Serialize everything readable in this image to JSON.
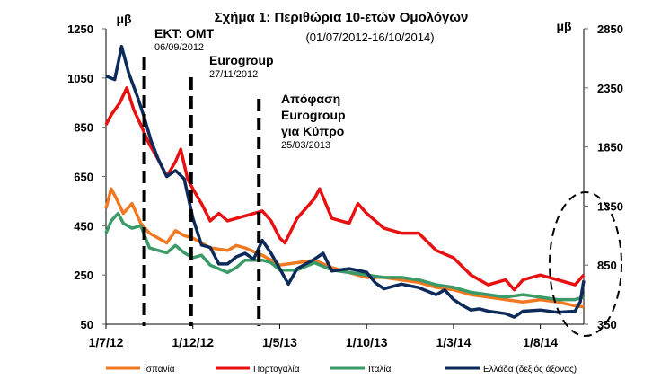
{
  "chart_data": {
    "type": "line",
    "title": "Σχήμα 1: Περιθώρια 10-ετών Ομολόγων",
    "subtitle": "(01/07/2012-16/10/2014)",
    "ylabel_left": "μβ",
    "ylabel_right": "μβ",
    "ylim_left": [
      50,
      1250
    ],
    "ylim_right": [
      350,
      2850
    ],
    "yticks_left": [
      "1250",
      "1050",
      "850",
      "650",
      "450",
      "250",
      "50"
    ],
    "yticks_right": [
      "2850",
      "2350",
      "1850",
      "1350",
      "850",
      "350"
    ],
    "x_unit": "months since 1/7/12",
    "xlim": [
      0,
      27.5
    ],
    "xticks": [
      {
        "m": 0,
        "label": "1/7/12"
      },
      {
        "m": 5,
        "label": "1/12/12"
      },
      {
        "m": 10,
        "label": "1/5/13"
      },
      {
        "m": 15,
        "label": "1/10/13"
      },
      {
        "m": 20,
        "label": "1/3/14"
      },
      {
        "m": 25,
        "label": "1/8/14"
      }
    ],
    "grid": false,
    "legend_position": "bottom",
    "annotations": [
      {
        "m": 2.2,
        "title": [
          "ΕΚΤ: ΟΜΤ"
        ],
        "date": "06/09/2012"
      },
      {
        "m": 4.9,
        "title": [
          "Eurogroup"
        ],
        "date": "27/11/2012"
      },
      {
        "m": 8.8,
        "title": [
          "Απόφαση",
          "Eurogroup",
          "για Κύπρο"
        ],
        "date": "25/03/2013"
      }
    ],
    "series": [
      {
        "name": "Ισπανία",
        "axis": "left",
        "color": "#f07820",
        "points": [
          [
            0,
            520
          ],
          [
            0.3,
            600
          ],
          [
            0.6,
            560
          ],
          [
            1,
            500
          ],
          [
            1.5,
            540
          ],
          [
            2,
            460
          ],
          [
            2.5,
            420
          ],
          [
            3,
            400
          ],
          [
            3.5,
            380
          ],
          [
            4,
            430
          ],
          [
            4.5,
            410
          ],
          [
            5,
            400
          ],
          [
            5.5,
            380
          ],
          [
            6,
            360
          ],
          [
            7,
            350
          ],
          [
            7.5,
            370
          ],
          [
            8,
            360
          ],
          [
            9,
            330
          ],
          [
            9.5,
            310
          ],
          [
            10,
            290
          ],
          [
            11,
            300
          ],
          [
            12,
            310
          ],
          [
            13,
            280
          ],
          [
            14,
            260
          ],
          [
            15,
            240
          ],
          [
            16,
            240
          ],
          [
            17,
            230
          ],
          [
            18,
            220
          ],
          [
            19,
            200
          ],
          [
            20,
            190
          ],
          [
            21,
            170
          ],
          [
            22,
            160
          ],
          [
            23,
            150
          ],
          [
            24,
            140
          ],
          [
            25,
            150
          ],
          [
            26,
            140
          ],
          [
            27,
            125
          ],
          [
            27.5,
            120
          ]
        ]
      },
      {
        "name": "Πορτογαλία",
        "axis": "left",
        "color": "#e81010",
        "points": [
          [
            0,
            860
          ],
          [
            0.3,
            900
          ],
          [
            0.8,
            950
          ],
          [
            1.2,
            1010
          ],
          [
            1.6,
            920
          ],
          [
            2,
            860
          ],
          [
            2.5,
            780
          ],
          [
            3,
            720
          ],
          [
            3.5,
            650
          ],
          [
            4,
            710
          ],
          [
            4.3,
            760
          ],
          [
            4.7,
            640
          ],
          [
            5,
            600
          ],
          [
            5.5,
            540
          ],
          [
            6,
            470
          ],
          [
            6.5,
            500
          ],
          [
            7,
            470
          ],
          [
            8,
            490
          ],
          [
            9,
            510
          ],
          [
            9.5,
            470
          ],
          [
            10,
            400
          ],
          [
            10.3,
            380
          ],
          [
            11,
            480
          ],
          [
            12,
            560
          ],
          [
            12.3,
            600
          ],
          [
            13,
            480
          ],
          [
            14,
            460
          ],
          [
            14.5,
            540
          ],
          [
            15,
            500
          ],
          [
            16,
            440
          ],
          [
            17,
            420
          ],
          [
            18,
            420
          ],
          [
            19,
            350
          ],
          [
            20,
            320
          ],
          [
            21,
            250
          ],
          [
            22,
            210
          ],
          [
            23,
            230
          ],
          [
            23.5,
            190
          ],
          [
            24,
            230
          ],
          [
            25,
            250
          ],
          [
            26,
            230
          ],
          [
            27,
            210
          ],
          [
            27.5,
            250
          ]
        ]
      },
      {
        "name": "Ιταλία",
        "axis": "left",
        "color": "#3a9a68",
        "points": [
          [
            0,
            420
          ],
          [
            0.3,
            470
          ],
          [
            0.7,
            500
          ],
          [
            1,
            460
          ],
          [
            1.5,
            440
          ],
          [
            2,
            450
          ],
          [
            2.5,
            360
          ],
          [
            3,
            350
          ],
          [
            3.5,
            340
          ],
          [
            4,
            370
          ],
          [
            4.5,
            340
          ],
          [
            5,
            320
          ],
          [
            5.5,
            330
          ],
          [
            6,
            290
          ],
          [
            7,
            260
          ],
          [
            7.5,
            280
          ],
          [
            8,
            310
          ],
          [
            9,
            310
          ],
          [
            9.5,
            300
          ],
          [
            10,
            270
          ],
          [
            11,
            270
          ],
          [
            12,
            300
          ],
          [
            13,
            270
          ],
          [
            14,
            260
          ],
          [
            15,
            250
          ],
          [
            16,
            240
          ],
          [
            17,
            240
          ],
          [
            18,
            230
          ],
          [
            19,
            210
          ],
          [
            20,
            200
          ],
          [
            21,
            180
          ],
          [
            22,
            170
          ],
          [
            23,
            160
          ],
          [
            24,
            170
          ],
          [
            25,
            160
          ],
          [
            26,
            150
          ],
          [
            27,
            150
          ],
          [
            27.5,
            160
          ]
        ]
      },
      {
        "name": "Ελλάδα (δεξιός άξονας)",
        "axis": "right",
        "color": "#0c2a5a",
        "points": [
          [
            0,
            2450
          ],
          [
            0.5,
            2420
          ],
          [
            0.9,
            2700
          ],
          [
            1.3,
            2480
          ],
          [
            1.8,
            2280
          ],
          [
            2.2,
            2100
          ],
          [
            2.6,
            1900
          ],
          [
            3,
            1750
          ],
          [
            3.5,
            1600
          ],
          [
            4,
            1650
          ],
          [
            4.5,
            1580
          ],
          [
            5,
            1250
          ],
          [
            5.5,
            1020
          ],
          [
            6,
            1000
          ],
          [
            6.5,
            860
          ],
          [
            7,
            860
          ],
          [
            7.5,
            920
          ],
          [
            8,
            950
          ],
          [
            8.5,
            900
          ],
          [
            9,
            1060
          ],
          [
            9.5,
            950
          ],
          [
            10,
            820
          ],
          [
            10.5,
            690
          ],
          [
            11,
            820
          ],
          [
            12,
            900
          ],
          [
            12.5,
            950
          ],
          [
            13,
            800
          ],
          [
            14,
            820
          ],
          [
            15,
            790
          ],
          [
            15.5,
            700
          ],
          [
            16,
            650
          ],
          [
            17,
            690
          ],
          [
            18,
            660
          ],
          [
            19,
            600
          ],
          [
            19.5,
            640
          ],
          [
            20,
            560
          ],
          [
            20.5,
            510
          ],
          [
            21,
            470
          ],
          [
            21.5,
            480
          ],
          [
            22,
            460
          ],
          [
            23,
            440
          ],
          [
            23.5,
            410
          ],
          [
            24,
            460
          ],
          [
            25,
            470
          ],
          [
            26,
            450
          ],
          [
            27,
            460
          ],
          [
            27.3,
            540
          ],
          [
            27.5,
            720
          ]
        ]
      }
    ]
  }
}
